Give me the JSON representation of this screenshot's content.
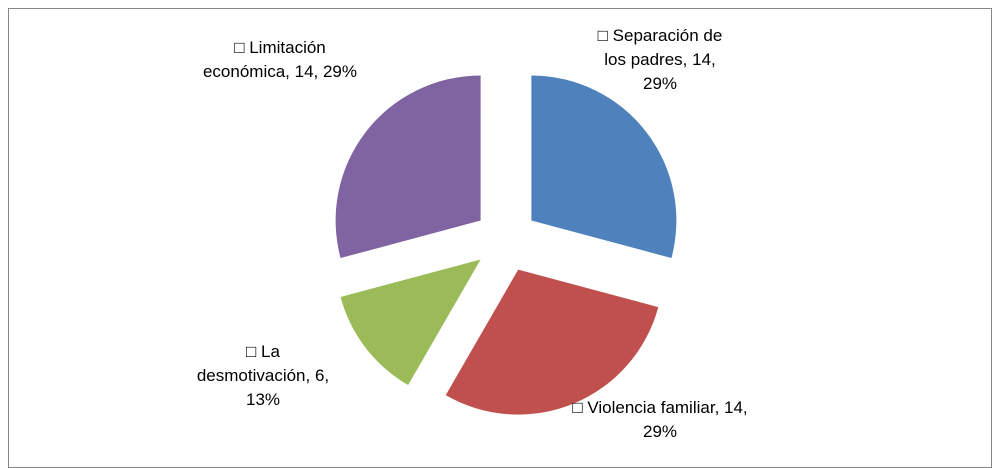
{
  "chart_data": {
    "type": "pie",
    "categories": [
      "Separación de los padres",
      "Violencia familiar",
      "La desmotivación",
      "Limitación económica"
    ],
    "values": [
      14,
      14,
      6,
      14
    ],
    "value_labels": [
      "□ Separación de los padres, 14, 29%",
      "□ Violencia familiar, 14, 29%",
      "□ La desmotivación, 6, 13%",
      "□ Limitación económica, 14, 29%"
    ],
    "colors": [
      "#4f81bd",
      "#c0504d",
      "#9bbb59",
      "#8064a2"
    ],
    "exploded": true
  }
}
